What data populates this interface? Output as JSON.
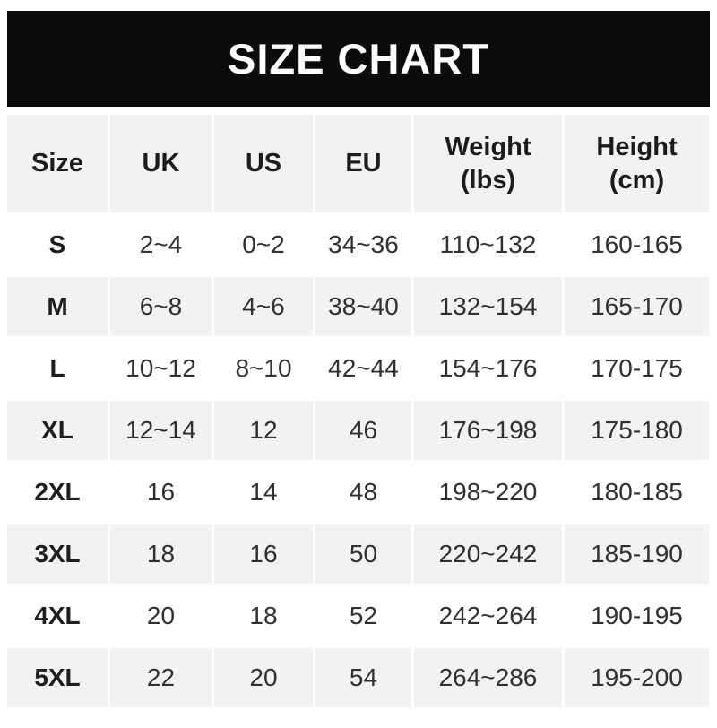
{
  "title": "SIZE CHART",
  "colors": {
    "banner_background": "#0b0b0b",
    "banner_text": "#ffffff",
    "stripe_background": "#f2f2f2",
    "row_background": "#ffffff",
    "header_text": "#1c1c1e",
    "cell_text": "#303032"
  },
  "display": {
    "headers": [
      "Size",
      "UK",
      "US",
      "EU",
      "Weight\n(lbs)",
      "Height\n(cm)"
    ]
  },
  "chart_data": {
    "type": "table",
    "title": "SIZE CHART",
    "columns": [
      "Size",
      "UK",
      "US",
      "EU",
      "Weight (lbs)",
      "Height (cm)"
    ],
    "rows": [
      [
        "S",
        "2~4",
        "0~2",
        "34~36",
        "110~132",
        "160-165"
      ],
      [
        "M",
        "6~8",
        "4~6",
        "38~40",
        "132~154",
        "165-170"
      ],
      [
        "L",
        "10~12",
        "8~10",
        "42~44",
        "154~176",
        "170-175"
      ],
      [
        "XL",
        "12~14",
        "12",
        "46",
        "176~198",
        "175-180"
      ],
      [
        "2XL",
        "16",
        "14",
        "48",
        "198~220",
        "180-185"
      ],
      [
        "3XL",
        "18",
        "16",
        "50",
        "220~242",
        "185-190"
      ],
      [
        "4XL",
        "20",
        "18",
        "52",
        "242~264",
        "190-195"
      ],
      [
        "5XL",
        "22",
        "20",
        "54",
        "264~286",
        "195-200"
      ]
    ]
  }
}
